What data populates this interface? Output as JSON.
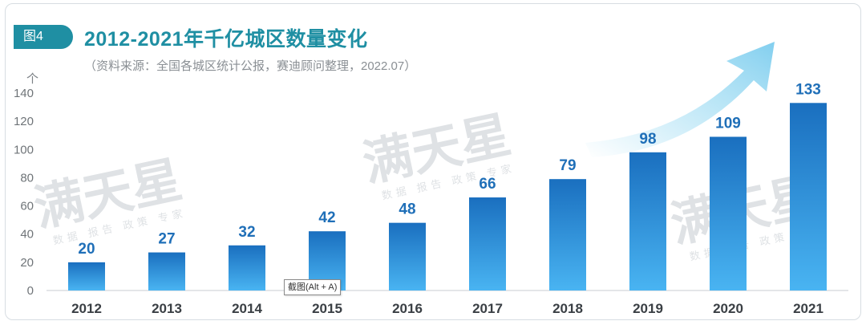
{
  "header": {
    "figure_tag": "图4",
    "title": "2012-2021年千亿城区数量变化",
    "source": "（资料来源：全国各城区统计公报，赛迪顾问整理，2022.07）"
  },
  "watermark": {
    "main": "满天星",
    "sub": "数据 报告 政策 专家"
  },
  "tooltip": {
    "text": "截图(Alt + A)"
  },
  "colors": {
    "accent": "#1f8fa3",
    "bar_top": "#1a6fbf",
    "bar_bottom": "#49b4f2",
    "label": "#1f6fb8",
    "arrow": "#7fd0ef"
  },
  "chart_data": {
    "type": "bar",
    "title": "2012-2021年千亿城区数量变化",
    "ylabel": "个",
    "xlabel": "",
    "categories": [
      "2012",
      "2013",
      "2014",
      "2015",
      "2016",
      "2017",
      "2018",
      "2019",
      "2020",
      "2021"
    ],
    "values": [
      20,
      27,
      32,
      42,
      48,
      66,
      79,
      98,
      109,
      133
    ],
    "ylim": [
      0,
      140
    ],
    "yticks": [
      0,
      20,
      40,
      60,
      80,
      100,
      120,
      140
    ],
    "grid": false,
    "data_labels": true
  }
}
